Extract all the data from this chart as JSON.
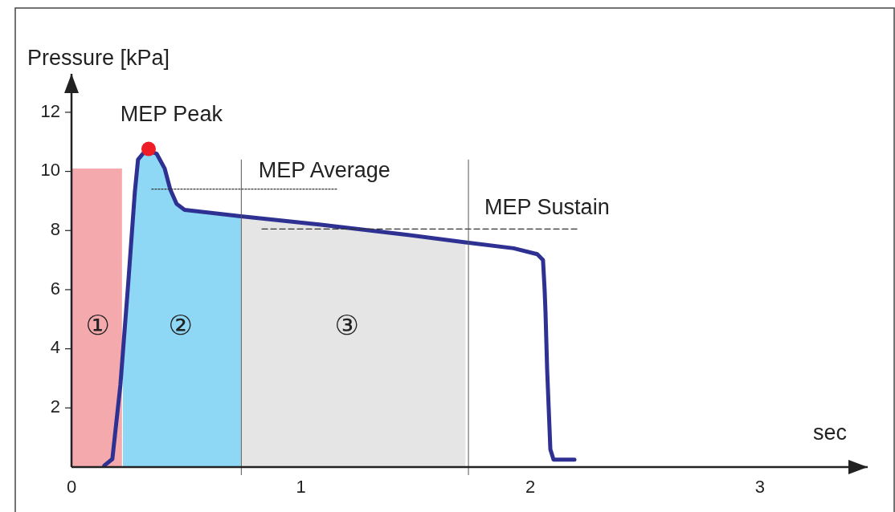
{
  "chart_data": {
    "type": "line",
    "xlabel": "sec",
    "ylabel": "Pressure [kPa]",
    "xlim": [
      0,
      3.47
    ],
    "xticks": [
      0,
      1,
      2,
      3
    ],
    "ylim": [
      0,
      13.3
    ],
    "yticks": [
      2,
      4,
      6,
      8,
      10,
      12
    ],
    "marker": "none",
    "ref_lines": [
      {
        "axis": "x",
        "value": 0.74,
        "color": "#555555"
      },
      {
        "axis": "x",
        "value": 1.73,
        "color": "#555555"
      }
    ],
    "annotations": [
      "MEP Peak",
      "MEP Average",
      "MEP Sustain",
      "①",
      "②",
      "③"
    ],
    "series": [
      {
        "type": "area",
        "color": "#f4a9ad",
        "x": [
          0,
          0.22
        ],
        "values": [
          10.1,
          10.1
        ]
      },
      {
        "type": "area",
        "color": "#8ed8f5",
        "x": [
          0.224,
          0.248,
          0.276,
          0.29,
          0.311,
          0.371,
          0.406,
          0.43,
          0.458,
          0.493,
          0.738
        ],
        "values": [
          3.3,
          6.3,
          9.3,
          10.4,
          10.6,
          10.6,
          10.1,
          9.4,
          8.9,
          8.7,
          8.48
        ]
      },
      {
        "type": "area",
        "color": "#e5e5e5",
        "x": [
          0.738,
          1.087,
          1.437,
          1.717
        ],
        "values": [
          8.48,
          8.2,
          7.88,
          7.6
        ]
      },
      {
        "color": "#2e3192",
        "x": [
          0.143,
          0.178,
          0.213,
          0.248,
          0.276,
          0.29,
          0.311,
          0.336,
          0.371,
          0.406,
          0.43,
          0.458,
          0.493,
          0.738,
          1.087,
          1.437,
          1.717,
          1.927,
          2.03,
          2.055,
          2.062,
          2.066,
          2.073,
          2.087,
          2.101,
          2.192
        ],
        "values": [
          0.05,
          0.27,
          2.77,
          6.3,
          9.3,
          10.4,
          10.6,
          10.7,
          10.6,
          10.1,
          9.4,
          8.9,
          8.7,
          8.48,
          8.2,
          7.88,
          7.6,
          7.4,
          7.2,
          7.0,
          6.0,
          5.2,
          3.3,
          0.6,
          0.25,
          0.25
        ]
      },
      {
        "type": "line",
        "color": "#333333",
        "line_style": "dotted",
        "x": [
          0.35,
          1.16
        ],
        "values": [
          9.4,
          9.4
        ]
      },
      {
        "type": "line",
        "color": "#333333",
        "line_style": "dashed",
        "x": [
          0.83,
          2.21
        ],
        "values": [
          8.05,
          8.05
        ]
      },
      {
        "type": "scatter",
        "color": "#ee1c25",
        "marker": "circle",
        "x": [
          0.336
        ],
        "values": [
          10.76
        ]
      }
    ]
  }
}
